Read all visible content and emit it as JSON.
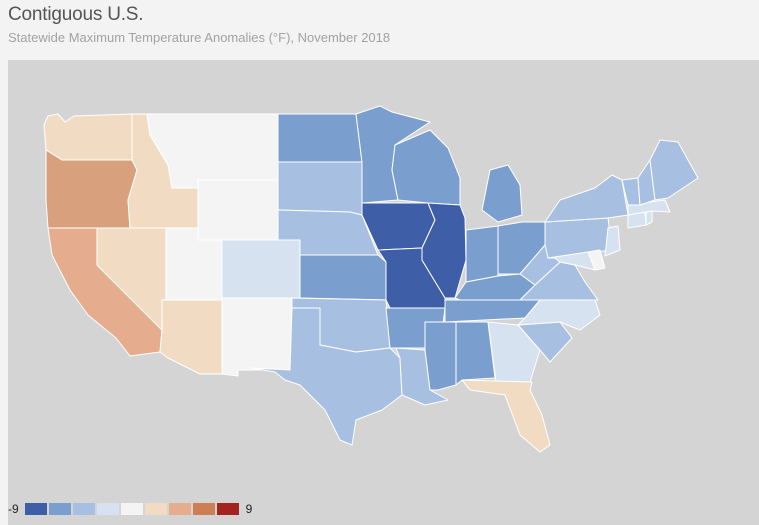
{
  "header": {
    "title": "Contiguous U.S.",
    "subtitle": "Statewide Maximum Temperature Anomalies (°F), November 2018"
  },
  "legend": {
    "min_label": "-9",
    "max_label": "9",
    "colors": [
      "#3f5ea8",
      "#7a9fce",
      "#a7c0e2",
      "#d6e2f0",
      "#f4f4f4",
      "#f1dcc3",
      "#e5ad8d",
      "#cd7f54",
      "#a3241e"
    ]
  },
  "colors": {
    "page_bg": "#f3f3f3",
    "map_bg": "#d4d4d4",
    "border": "#ffffff"
  },
  "states": [
    {
      "name": "Washington",
      "color": "#f1dcc3"
    },
    {
      "name": "Oregon",
      "color": "#d9a07d"
    },
    {
      "name": "California",
      "color": "#e5ad8d"
    },
    {
      "name": "Idaho",
      "color": "#f1dcc3"
    },
    {
      "name": "Nevada",
      "color": "#f1dcc3"
    },
    {
      "name": "Montana",
      "color": "#f4f4f4"
    },
    {
      "name": "Wyoming",
      "color": "#f4f4f4"
    },
    {
      "name": "Utah",
      "color": "#f4f4f4"
    },
    {
      "name": "Arizona",
      "color": "#f1dcc3"
    },
    {
      "name": "Colorado",
      "color": "#d6e2f0"
    },
    {
      "name": "New Mexico",
      "color": "#f4f4f4"
    },
    {
      "name": "North Dakota",
      "color": "#7a9fce"
    },
    {
      "name": "South Dakota",
      "color": "#a7c0e2"
    },
    {
      "name": "Nebraska",
      "color": "#a7c0e2"
    },
    {
      "name": "Kansas",
      "color": "#7a9fce"
    },
    {
      "name": "Oklahoma",
      "color": "#a7c0e2"
    },
    {
      "name": "Texas",
      "color": "#a7c0e2"
    },
    {
      "name": "Minnesota",
      "color": "#7a9fce"
    },
    {
      "name": "Iowa",
      "color": "#3f5ea8"
    },
    {
      "name": "Missouri",
      "color": "#3f5ea8"
    },
    {
      "name": "Arkansas",
      "color": "#7a9fce"
    },
    {
      "name": "Louisiana",
      "color": "#a7c0e2"
    },
    {
      "name": "Wisconsin",
      "color": "#7a9fce"
    },
    {
      "name": "Illinois",
      "color": "#3f5ea8"
    },
    {
      "name": "Michigan",
      "color": "#7a9fce"
    },
    {
      "name": "Indiana",
      "color": "#7a9fce"
    },
    {
      "name": "Ohio",
      "color": "#7a9fce"
    },
    {
      "name": "Kentucky",
      "color": "#7a9fce"
    },
    {
      "name": "Tennessee",
      "color": "#7a9fce"
    },
    {
      "name": "Mississippi",
      "color": "#7a9fce"
    },
    {
      "name": "Alabama",
      "color": "#7a9fce"
    },
    {
      "name": "Georgia",
      "color": "#d6e2f0"
    },
    {
      "name": "Florida",
      "color": "#f1dcc3"
    },
    {
      "name": "South Carolina",
      "color": "#a7c0e2"
    },
    {
      "name": "North Carolina",
      "color": "#d6e2f0"
    },
    {
      "name": "Virginia",
      "color": "#a7c0e2"
    },
    {
      "name": "West Virginia",
      "color": "#a7c0e2"
    },
    {
      "name": "Pennsylvania",
      "color": "#a7c0e2"
    },
    {
      "name": "New York",
      "color": "#a7c0e2"
    },
    {
      "name": "Maryland",
      "color": "#d6e2f0"
    },
    {
      "name": "Delaware",
      "color": "#f4f4f4"
    },
    {
      "name": "New Jersey",
      "color": "#d6e2f0"
    },
    {
      "name": "Connecticut",
      "color": "#d6e2f0"
    },
    {
      "name": "Rhode Island",
      "color": "#d6e2f0"
    },
    {
      "name": "Massachusetts",
      "color": "#d6e2f0"
    },
    {
      "name": "Vermont",
      "color": "#a7c0e2"
    },
    {
      "name": "New Hampshire",
      "color": "#a7c0e2"
    },
    {
      "name": "Maine",
      "color": "#a7c0e2"
    }
  ]
}
